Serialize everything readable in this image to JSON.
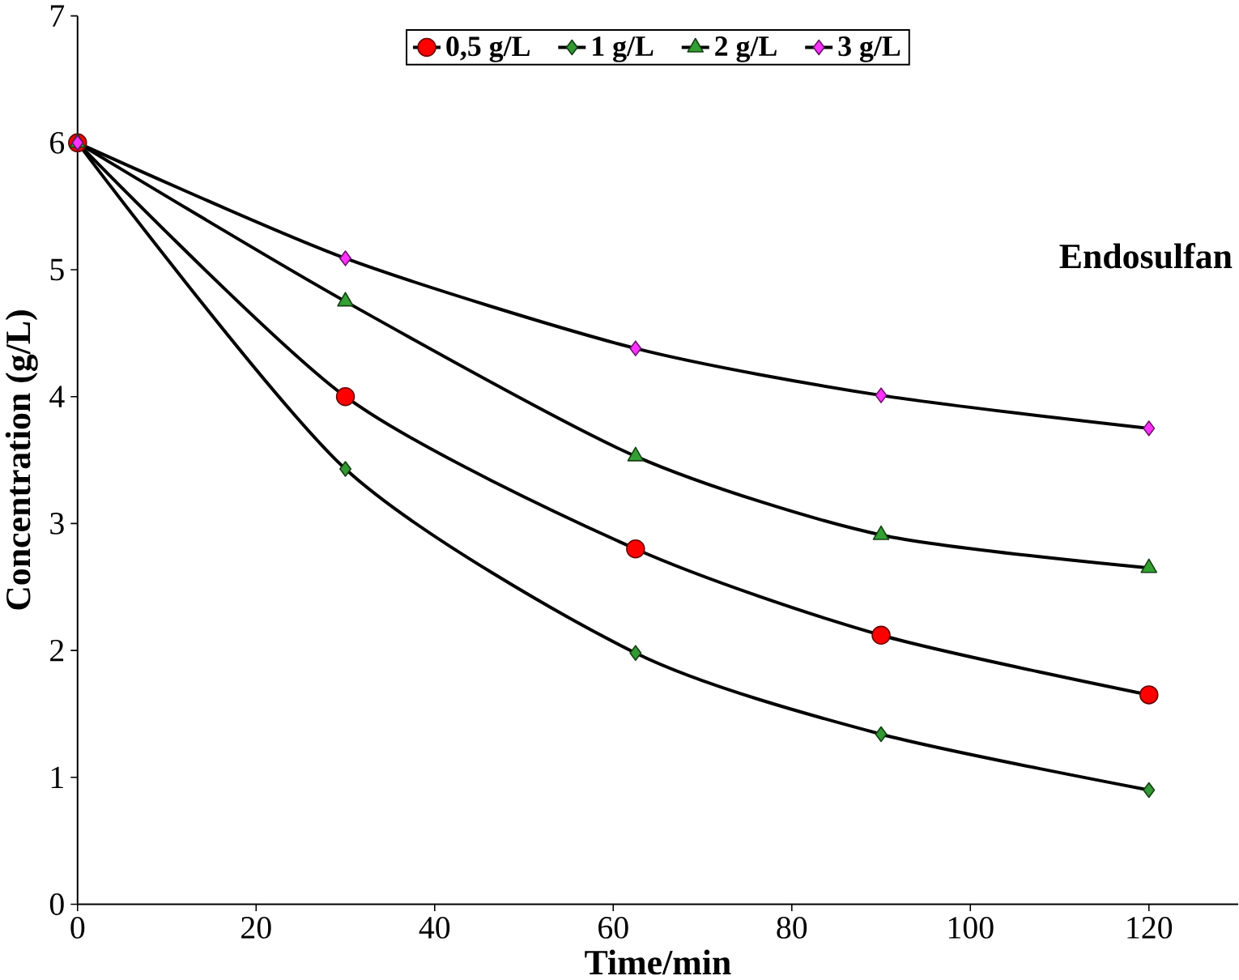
{
  "chart_data": {
    "type": "line",
    "xlabel": "Time/min",
    "ylabel": "Concentration (g/L)",
    "annotations": [
      "Endosulfan"
    ],
    "x": [
      0,
      30,
      62.5,
      90,
      120
    ],
    "series": [
      {
        "name": "0,5 g/L",
        "color": "#ff0000",
        "marker": "circle",
        "values": [
          6,
          4.0,
          2.8,
          2.12,
          1.65
        ]
      },
      {
        "name": "1 g/L",
        "color": "#339933",
        "marker": "diamond",
        "values": [
          6,
          3.43,
          1.98,
          1.34,
          0.9
        ]
      },
      {
        "name": "2 g/L",
        "color": "#33a033",
        "marker": "triangle",
        "values": [
          6,
          4.75,
          3.53,
          2.91,
          2.65
        ]
      },
      {
        "name": "3 g/L",
        "color": "#ff33ff",
        "marker": "diamond",
        "values": [
          6,
          5.09,
          4.38,
          4.01,
          3.75
        ]
      }
    ],
    "xlim": [
      0,
      130
    ],
    "ylim": [
      0,
      7
    ],
    "xticks": [
      0,
      20,
      40,
      60,
      80,
      100,
      120
    ],
    "yticks": [
      0,
      1,
      2,
      3,
      4,
      5,
      6,
      7
    ],
    "legend": "top",
    "grid": false,
    "line_style": "solid"
  }
}
